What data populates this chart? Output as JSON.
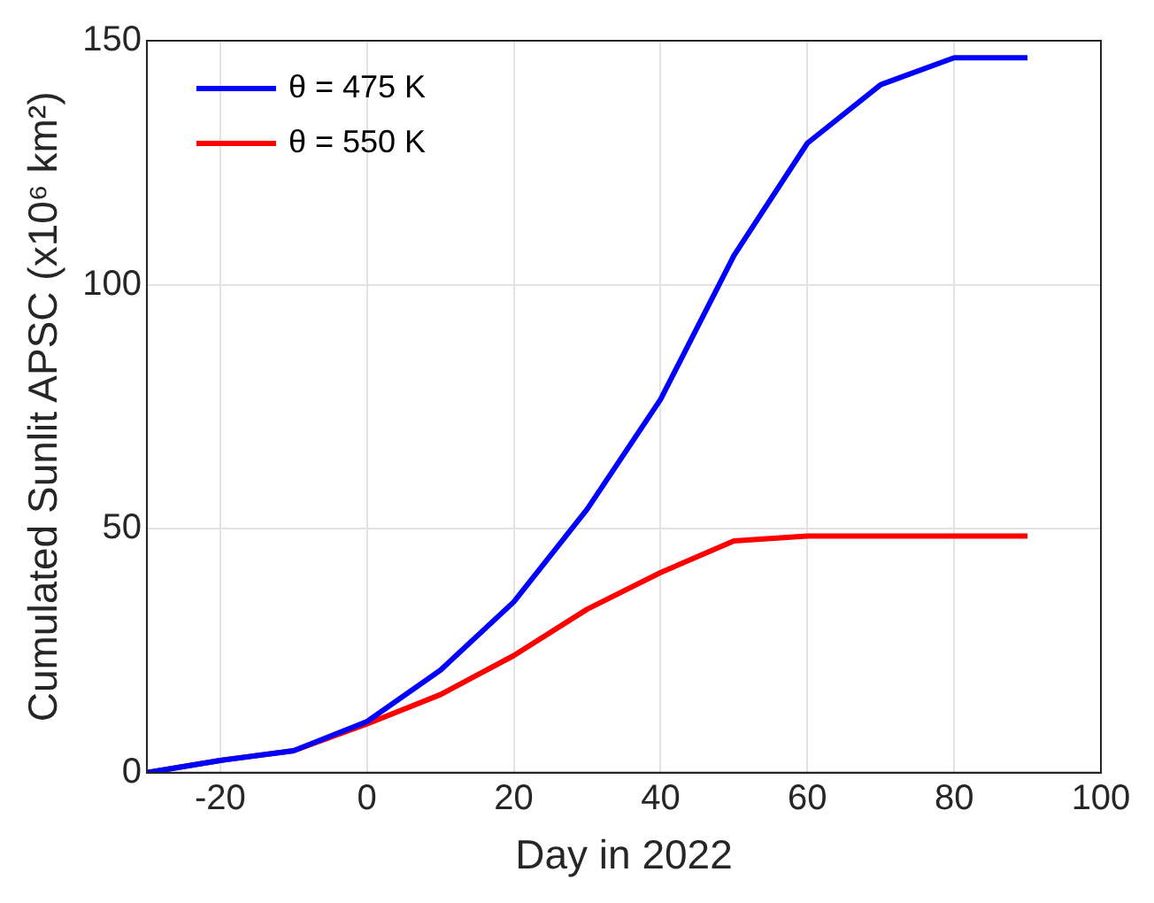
{
  "chart_data": {
    "type": "line",
    "xlabel": "Day in 2022",
    "ylabel": "Cumulated Sunlit APSC (x10⁶ km²)",
    "x": [
      -30,
      -20,
      -10,
      0,
      10,
      20,
      30,
      40,
      50,
      60,
      70,
      80,
      90
    ],
    "series": [
      {
        "name": "θ = 475 K",
        "color": "#0000ff",
        "values": [
          0,
          2.5,
          4.5,
          10.5,
          21,
          35,
          54,
          76.5,
          106,
          129,
          141,
          146.5,
          146.5
        ]
      },
      {
        "name": "θ = 550 K",
        "color": "#ff0000",
        "values": [
          0,
          2.5,
          4.5,
          10,
          16,
          24,
          33.5,
          41,
          47.5,
          48.5,
          48.5,
          48.5,
          48.5
        ]
      }
    ],
    "xlim": [
      -30,
      100
    ],
    "xticks": [
      -20,
      0,
      20,
      40,
      60,
      80,
      100
    ],
    "ylim": [
      0,
      150
    ],
    "yticks": [
      0,
      50,
      100,
      150
    ],
    "grid": true,
    "legend": "top left",
    "marker": "none",
    "line_style": "solid"
  }
}
